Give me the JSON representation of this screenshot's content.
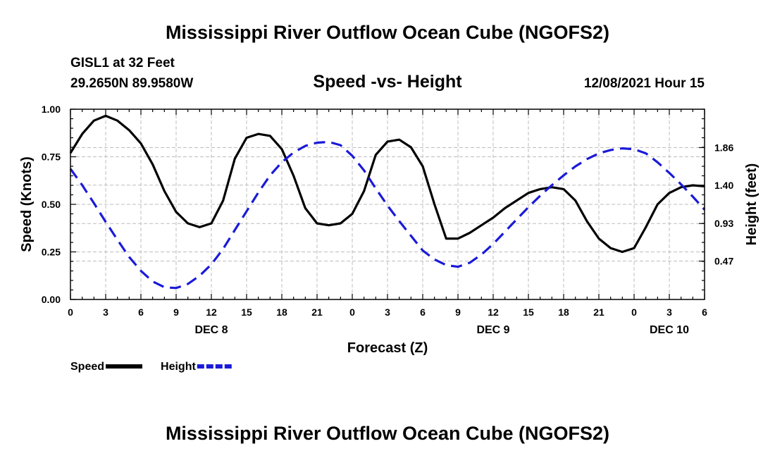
{
  "page": {
    "title": "Mississippi River Outflow Ocean Cube (NGOFS2)",
    "title_repeat": "Mississippi River Outflow Ocean Cube (NGOFS2)",
    "station": "GISL1 at 32 Feet",
    "coords": "29.2650N  89.9580W",
    "plot_title": "Speed -vs- Height",
    "datetime": "12/08/2021 Hour 15"
  },
  "chart_data": {
    "type": "line",
    "xlabel": "Forecast (Z)",
    "ylabel": "Speed (Knots)",
    "y2label": "Height (feet)",
    "xlim": [
      0,
      54
    ],
    "ylim": [
      0,
      1
    ],
    "y2lim": [
      0.0,
      2.33
    ],
    "x_ticks": [
      0,
      3,
      6,
      9,
      12,
      15,
      18,
      21,
      24,
      27,
      30,
      33,
      36,
      39,
      42,
      45,
      48,
      51,
      54
    ],
    "x_tick_labels": [
      "0",
      "3",
      "6",
      "9",
      "12",
      "15",
      "18",
      "21",
      "0",
      "3",
      "6",
      "9",
      "12",
      "15",
      "18",
      "21",
      "0",
      "3",
      "6"
    ],
    "date_labels": [
      {
        "x": 12,
        "label": "DEC 8"
      },
      {
        "x": 36,
        "label": "DEC 9"
      },
      {
        "x": 51,
        "label": "DEC 10"
      }
    ],
    "y_ticks": [
      0.0,
      0.25,
      0.5,
      0.75,
      1.0
    ],
    "y_tick_labels": [
      "0.00",
      "0.25",
      "0.50",
      "0.75",
      "1.00"
    ],
    "y2_ticks": [
      0.47,
      0.93,
      1.4,
      1.86
    ],
    "y2_tick_labels": [
      "0.47",
      "0.93",
      "1.40",
      "1.86"
    ],
    "series": [
      {
        "name": "Speed",
        "color": "#000000",
        "dashed": false,
        "axis": "left",
        "x": [
          0,
          1,
          2,
          3,
          4,
          5,
          6,
          7,
          8,
          9,
          10,
          11,
          12,
          13,
          14,
          15,
          16,
          17,
          18,
          19,
          20,
          21,
          22,
          23,
          24,
          25,
          26,
          27,
          28,
          29,
          30,
          31,
          32,
          33,
          34,
          35,
          36,
          37,
          38,
          39,
          40,
          41,
          42,
          43,
          44,
          45,
          46,
          47,
          48,
          49,
          50,
          51,
          52,
          53,
          54
        ],
        "values": [
          0.77,
          0.87,
          0.94,
          0.965,
          0.94,
          0.89,
          0.82,
          0.71,
          0.57,
          0.46,
          0.4,
          0.38,
          0.4,
          0.52,
          0.74,
          0.85,
          0.87,
          0.86,
          0.79,
          0.65,
          0.48,
          0.4,
          0.39,
          0.4,
          0.45,
          0.57,
          0.76,
          0.83,
          0.84,
          0.8,
          0.7,
          0.5,
          0.32,
          0.32,
          0.35,
          0.39,
          0.43,
          0.48,
          0.52,
          0.56,
          0.58,
          0.59,
          0.58,
          0.52,
          0.41,
          0.32,
          0.27,
          0.25,
          0.27,
          0.38,
          0.5,
          0.56,
          0.59,
          0.6,
          0.595
        ]
      },
      {
        "name": "Height",
        "color": "#1a1ad8",
        "dashed": true,
        "axis": "right",
        "x": [
          0,
          1,
          2,
          3,
          4,
          5,
          6,
          7,
          8,
          9,
          10,
          11,
          12,
          13,
          14,
          15,
          16,
          17,
          18,
          19,
          20,
          21,
          22,
          23,
          24,
          25,
          26,
          27,
          28,
          29,
          30,
          31,
          32,
          33,
          34,
          35,
          36,
          37,
          38,
          39,
          40,
          41,
          42,
          43,
          44,
          45,
          46,
          47,
          48,
          49,
          50,
          51,
          52,
          53,
          54
        ],
        "values": [
          1.6,
          1.4,
          1.18,
          0.95,
          0.73,
          0.52,
          0.35,
          0.22,
          0.15,
          0.14,
          0.19,
          0.29,
          0.43,
          0.62,
          0.85,
          1.08,
          1.31,
          1.52,
          1.68,
          1.8,
          1.88,
          1.92,
          1.93,
          1.89,
          1.76,
          1.58,
          1.36,
          1.15,
          0.96,
          0.78,
          0.6,
          0.49,
          0.42,
          0.4,
          0.45,
          0.55,
          0.68,
          0.83,
          0.98,
          1.13,
          1.27,
          1.4,
          1.52,
          1.63,
          1.72,
          1.79,
          1.83,
          1.85,
          1.84,
          1.79,
          1.68,
          1.55,
          1.41,
          1.26,
          1.1
        ]
      }
    ],
    "legend": [
      {
        "label": "Speed",
        "color": "#000000",
        "dashed": false
      },
      {
        "label": "Height",
        "color": "#1a1ad8",
        "dashed": true
      }
    ]
  }
}
